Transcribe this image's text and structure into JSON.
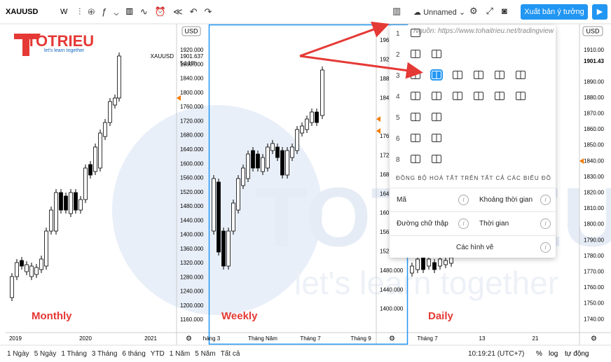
{
  "toolbar": {
    "symbol": "XAUUSD",
    "interval": "W",
    "layout_name": "Unnamed",
    "publish_button": "Xuất bản ý tưởng"
  },
  "source_note": "Nguồn: https://www.tohaitrieu.net/tradingview",
  "logo": {
    "name": "TOTRIEU",
    "tagline": "let's learn together"
  },
  "panes": [
    {
      "label": "Monthly",
      "currency": "USD",
      "price_labels": [
        "1920.000",
        "1880.000",
        "1840.000",
        "1800.000",
        "1760.000",
        "1720.000",
        "1680.000",
        "1640.000",
        "1600.000",
        "1560.000",
        "1520.000",
        "1480.000",
        "1440.000",
        "1400.000",
        "1360.000",
        "1320.000",
        "1280.000",
        "1240.000",
        "1200.000",
        "1160.000"
      ],
      "last_symbol": "XAUUSD",
      "last_price": "1901.637",
      "countdown": "5d 18h",
      "time_labels": [
        "2019",
        "2020",
        "2021"
      ]
    },
    {
      "label": "Weekly",
      "price_labels": [
        "196",
        "192",
        "188",
        "184",
        "176",
        "172",
        "168",
        "164",
        "160",
        "156",
        "152",
        "1480.000",
        "1440.000",
        "1400.000"
      ],
      "time_labels": [
        "háng 3",
        "Tháng Năm",
        "Tháng 7",
        "Tháng 9"
      ]
    },
    {
      "label": "Daily",
      "currency": "USD",
      "price_labels": [
        "1910.00",
        "1890.00",
        "1880.00",
        "1870.00",
        "1860.00",
        "1850.00",
        "1840.00",
        "1830.00",
        "1820.00",
        "1810.00",
        "1800.00",
        "1790.00",
        "1780.00",
        "1770.00",
        "1760.00",
        "1750.00",
        "1740.00"
      ],
      "last_price": "1901.43",
      "time_labels": [
        "Tháng 7",
        "13",
        "21"
      ]
    }
  ],
  "layout_menu": {
    "rows": [
      "1",
      "2",
      "3",
      "4",
      "5",
      "6",
      "8"
    ],
    "sync_title": "ĐỒNG BỘ HOÁ TẤT TRÊN TẤT CẢ CÁC BIỂU ĐỒ",
    "sync_options": [
      "Mã",
      "Khoảng thời gian",
      "Đường chữ thập",
      "Thời gian",
      "Các hình vẽ"
    ]
  },
  "bottom_bar": {
    "ranges": [
      "1 Ngày",
      "5 Ngày",
      "1 Tháng",
      "3 Tháng",
      "6 tháng",
      "YTD",
      "1 Năm",
      "5 Năm",
      "Tất cả"
    ],
    "clock": "10:19:21 (UTC+7)",
    "percent": "%",
    "log": "log",
    "auto": "tự động"
  }
}
